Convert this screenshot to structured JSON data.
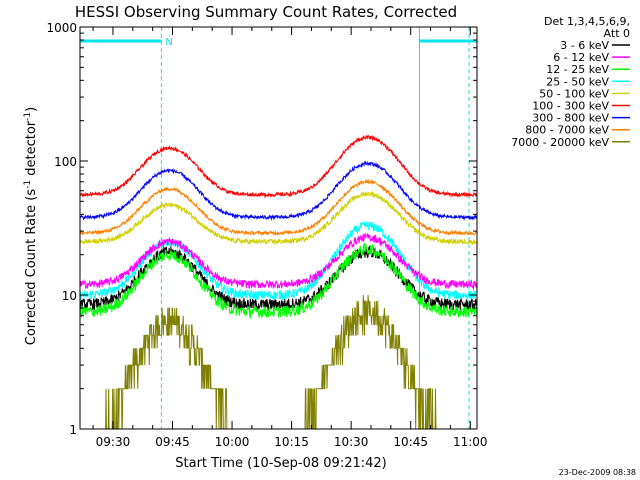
{
  "chart_data": {
    "type": "line",
    "title": "HESSI Observing Summary Count Rates, Corrected",
    "xlabel": "Start Time (10-Sep-08 09:21:42)",
    "ylabel_main": "Corrected Count Rate (s",
    "ylabel_sup1": "-1",
    "ylabel_mid": " detector",
    "ylabel_sup2": "-1",
    "ylabel_end": ")",
    "yscale": "log",
    "ylim": [
      1,
      1000
    ],
    "xlim_minutes": [
      0,
      100
    ],
    "x_ticks": [
      "09:30",
      "09:45",
      "10:00",
      "10:15",
      "10:30",
      "10:45",
      "11:00"
    ],
    "y_ticks": [
      "1",
      "10",
      "100",
      "1000"
    ],
    "legend": {
      "header": [
        "Det 1,3,4,5,6,9,",
        "Att 0"
      ],
      "placement": "top-right, outside plot"
    },
    "timestamp": "23-Dec-2009 08:38",
    "night_label": "N",
    "night_color": "#00e5ee",
    "series": [
      {
        "name": "3 - 6 keV",
        "color": "#000000",
        "base": 8.5,
        "peak1": 21,
        "peak2": 21,
        "noise": 0.1
      },
      {
        "name": "6 - 12 keV",
        "color": "#ff00ff",
        "base": 12,
        "peak1": 25,
        "peak2": 27,
        "noise": 0.07
      },
      {
        "name": "12 - 25 keV",
        "color": "#00ff00",
        "base": 7.5,
        "peak1": 20,
        "peak2": 22,
        "noise": 0.1
      },
      {
        "name": "25 - 50 keV",
        "color": "#00ffff",
        "base": 10,
        "peak1": 25,
        "peak2": 33,
        "noise": 0.08
      },
      {
        "name": "50 - 100 keV",
        "color": "#d0d000",
        "base": 25,
        "peak1": 47,
        "peak2": 57,
        "noise": 0.04
      },
      {
        "name": "100 - 300 keV",
        "color": "#ff0000",
        "base": 56,
        "peak1": 125,
        "peak2": 150,
        "noise": 0.03
      },
      {
        "name": "300 - 800 keV",
        "color": "#0000ff",
        "base": 38,
        "peak1": 85,
        "peak2": 96,
        "noise": 0.03
      },
      {
        "name": "800 - 7000 keV",
        "color": "#ff8000",
        "base": 29,
        "peak1": 62,
        "peak2": 70,
        "noise": 0.03
      },
      {
        "name": "7000 - 20000 keV",
        "color": "#808000",
        "base": 1,
        "peak1": 6.5,
        "peak2": 7.5,
        "noise": 0.35
      }
    ]
  }
}
